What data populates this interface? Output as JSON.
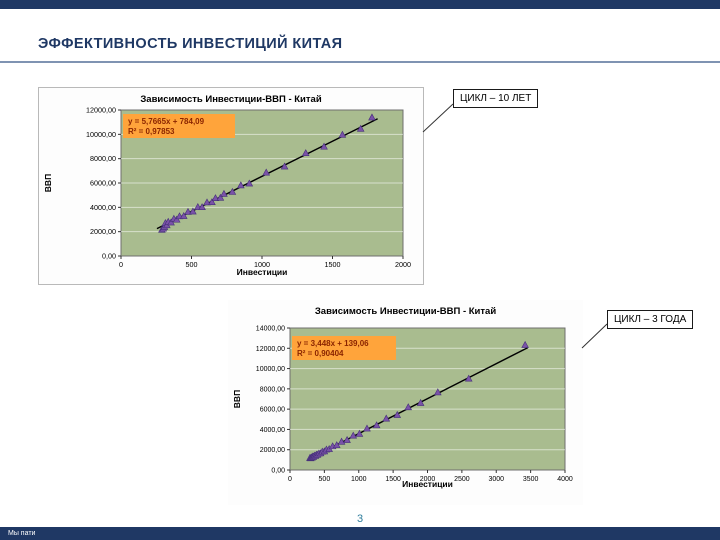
{
  "slide": {
    "title": "ЭФФЕКТИВНОСТЬ ИНВЕСТИЦИЙ КИТАЯ",
    "page_number": "3",
    "footer_text": "Мы пати",
    "colors": {
      "accent_navy": "#1F3864",
      "divider": "#7F93B2",
      "page_number": "#2E7D9C"
    }
  },
  "callouts": [
    {
      "label": "ЦИКЛ – 10 ЛЕТ"
    },
    {
      "label": "ЦИКЛ – 3 ГОДА"
    }
  ],
  "chart_data": [
    {
      "type": "scatter",
      "title": "Зависимость Инвестиции-ВВП - Китай",
      "equation": "y = 5,7665x + 784,09",
      "r_squared": "R² = 0,97853",
      "xlabel": "Инвестиции",
      "ylabel": "ВВП",
      "xlim": [
        0,
        2000
      ],
      "ylim": [
        0,
        12000
      ],
      "x_ticks": [
        0,
        500,
        1000,
        1500,
        2000
      ],
      "x_tick_labels": [
        "0",
        "500",
        "1000",
        "1500",
        "2000"
      ],
      "y_ticks": [
        0,
        2000,
        4000,
        6000,
        8000,
        10000,
        12000
      ],
      "y_tick_labels": [
        "0,00",
        "2000,00",
        "4000,00",
        "6000,00",
        "8000,00",
        "10000,00",
        "12000,00"
      ],
      "trendline": {
        "slope": 5.7665,
        "intercept": 784.09,
        "x_start": 255,
        "x_end": 1820
      },
      "points": [
        [
          290,
          2150
        ],
        [
          300,
          2250
        ],
        [
          308,
          2380
        ],
        [
          315,
          2700
        ],
        [
          325,
          2520
        ],
        [
          335,
          2800
        ],
        [
          355,
          2750
        ],
        [
          375,
          3050
        ],
        [
          395,
          2980
        ],
        [
          415,
          3260
        ],
        [
          445,
          3280
        ],
        [
          475,
          3620
        ],
        [
          510,
          3650
        ],
        [
          545,
          4020
        ],
        [
          575,
          4010
        ],
        [
          610,
          4400
        ],
        [
          645,
          4420
        ],
        [
          670,
          4750
        ],
        [
          705,
          4780
        ],
        [
          730,
          5100
        ],
        [
          790,
          5260
        ],
        [
          850,
          5800
        ],
        [
          910,
          5950
        ],
        [
          1030,
          6850
        ],
        [
          1160,
          7350
        ],
        [
          1310,
          8450
        ],
        [
          1440,
          8980
        ],
        [
          1570,
          9960
        ],
        [
          1700,
          10450
        ],
        [
          1780,
          11380
        ]
      ],
      "colors": {
        "plot_bg": "#A9BC8F",
        "marker": "#7A52A8",
        "marker_edge": "#46307A",
        "trend": "#000000",
        "equation_bg": "#FFA43B",
        "equation_text": "#8B2500"
      }
    },
    {
      "type": "scatter",
      "title": "Зависимость Инвестиции-ВВП - Китай",
      "equation": "y = 3,448x + 139,06",
      "r_squared": "R² = 0,90404",
      "xlabel": "Инвестиции",
      "ylabel": "ВВП",
      "xlim": [
        0,
        4000
      ],
      "ylim": [
        0,
        14000
      ],
      "x_ticks": [
        0,
        500,
        1000,
        1500,
        2000,
        2500,
        3000,
        3500,
        4000
      ],
      "x_tick_labels": [
        "0",
        "500",
        "1000",
        "1500",
        "2000",
        "2500",
        "3000",
        "3500",
        "4000"
      ],
      "y_ticks": [
        0,
        2000,
        4000,
        6000,
        8000,
        10000,
        12000,
        14000
      ],
      "y_tick_labels": [
        "0,00",
        "2000,00",
        "4000,00",
        "6000,00",
        "8000,00",
        "10000,00",
        "12000,00",
        "14000,00"
      ],
      "trendline": {
        "slope": 3.448,
        "intercept": 139.06,
        "x_start": 270,
        "x_end": 3460
      },
      "points": [
        [
          290,
          1180
        ],
        [
          300,
          1150
        ],
        [
          310,
          1230
        ],
        [
          320,
          1210
        ],
        [
          330,
          1320
        ],
        [
          340,
          1290
        ],
        [
          355,
          1400
        ],
        [
          370,
          1380
        ],
        [
          385,
          1500
        ],
        [
          400,
          1490
        ],
        [
          420,
          1620
        ],
        [
          445,
          1640
        ],
        [
          470,
          1800
        ],
        [
          500,
          1830
        ],
        [
          530,
          2010
        ],
        [
          570,
          2060
        ],
        [
          620,
          2330
        ],
        [
          680,
          2440
        ],
        [
          750,
          2780
        ],
        [
          830,
          2950
        ],
        [
          920,
          3380
        ],
        [
          1010,
          3560
        ],
        [
          1120,
          4080
        ],
        [
          1260,
          4400
        ],
        [
          1400,
          5060
        ],
        [
          1560,
          5420
        ],
        [
          1720,
          6180
        ],
        [
          1900,
          6600
        ],
        [
          2150,
          7650
        ],
        [
          2600,
          9000
        ],
        [
          3420,
          12320
        ]
      ],
      "colors": {
        "plot_bg": "#A9BC8F",
        "marker": "#7A52A8",
        "marker_edge": "#46307A",
        "trend": "#000000",
        "equation_bg": "#FFA43B",
        "equation_text": "#8B2500"
      }
    }
  ]
}
